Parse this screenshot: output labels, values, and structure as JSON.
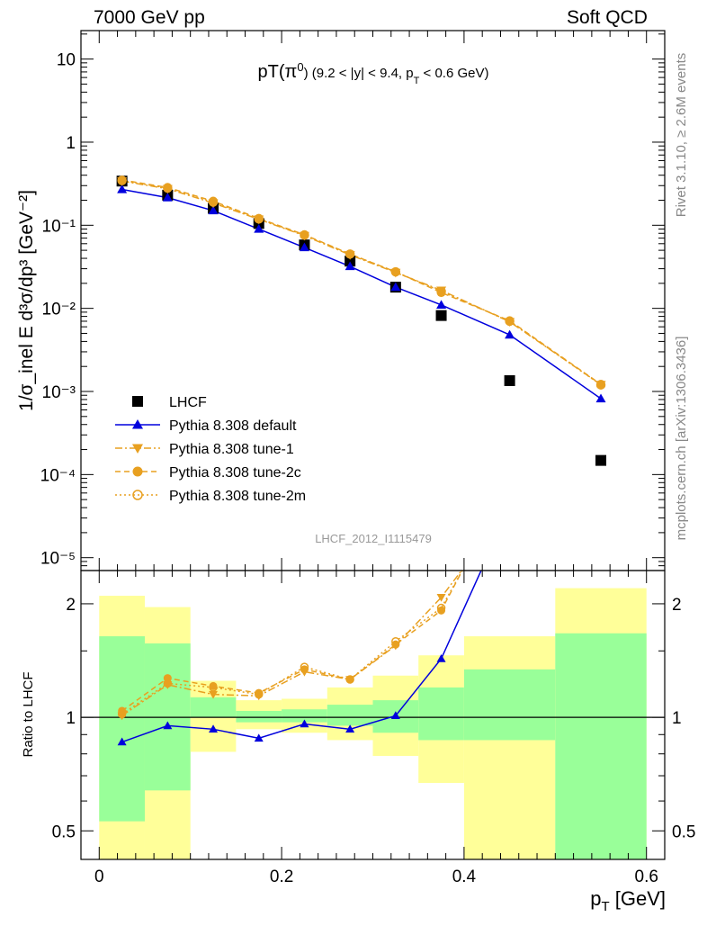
{
  "header": {
    "energy_label": "7000 GeV pp",
    "category_label": "Soft QCD"
  },
  "side_labels": {
    "rivet": "Rivet 3.1.10, ≥ 2.6M events",
    "mcplots": "mcplots.cern.ch [arXiv:1306.3436]"
  },
  "colors": {
    "data": "#000000",
    "default": "#0000dd",
    "tunes": "#e8a020",
    "band_inner": "#99ff99",
    "band_outer": "#ffff99"
  },
  "chart_data": [
    {
      "type": "line",
      "panel": "main",
      "title": {
        "pre": "pT(π",
        "sup": "0",
        "post": ") (9.2 < |y| < 9.4, p",
        "sub": "T",
        "tail": " < 0.6 GeV)"
      },
      "ylabel": "1/σ_inel E d³σ/dp³ [GeV⁻²]",
      "analysis_label": "LHCF_2012_I1115479",
      "yscale": "log",
      "ylim": [
        7e-06,
        22
      ],
      "xlim": [
        -0.02,
        0.62
      ],
      "ytick_labels": [
        "10",
        "1",
        "10⁻¹",
        "10⁻²",
        "10⁻³",
        "10⁻⁴",
        "10⁻⁵"
      ],
      "legend_placement": "lower-left",
      "series": [
        {
          "name": "LHCF",
          "style": "marker-square",
          "x": [
            0.025,
            0.075,
            0.125,
            0.175,
            0.225,
            0.275,
            0.325,
            0.375,
            0.45,
            0.55
          ],
          "y": [
            0.34,
            0.23,
            0.16,
            0.105,
            0.058,
            0.037,
            0.018,
            0.0082,
            0.00135,
            0.000148
          ]
        },
        {
          "name": "Pythia 8.308 default",
          "style": "solid-triangle-up",
          "x": [
            0.025,
            0.075,
            0.125,
            0.175,
            0.225,
            0.275,
            0.325,
            0.375,
            0.45,
            0.55
          ],
          "y": [
            0.27,
            0.215,
            0.15,
            0.09,
            0.054,
            0.032,
            0.018,
            0.011,
            0.0048,
            0.00082
          ]
        },
        {
          "name": "Pythia 8.308 tune-1",
          "style": "dashdot-triangle-down",
          "x": [
            0.025,
            0.075,
            0.125,
            0.175,
            0.225,
            0.275,
            0.325,
            0.375,
            0.45,
            0.55
          ],
          "y": [
            0.34,
            0.275,
            0.185,
            0.118,
            0.075,
            0.044,
            0.027,
            0.0165,
            0.0069,
            0.00121
          ]
        },
        {
          "name": "Pythia 8.308 tune-2c",
          "style": "dashed-circle-filled",
          "x": [
            0.025,
            0.075,
            0.125,
            0.175,
            0.225,
            0.275,
            0.325,
            0.375,
            0.45,
            0.55
          ],
          "y": [
            0.35,
            0.285,
            0.195,
            0.121,
            0.077,
            0.045,
            0.0275,
            0.0155,
            0.0071,
            0.00122
          ]
        },
        {
          "name": "Pythia 8.308 tune-2m",
          "style": "dotted-circle-open",
          "x": [
            0.025,
            0.075,
            0.125,
            0.175,
            0.225,
            0.275,
            0.325,
            0.375,
            0.45,
            0.55
          ],
          "y": [
            0.345,
            0.28,
            0.19,
            0.119,
            0.076,
            0.045,
            0.0275,
            0.016,
            0.007,
            0.0012
          ]
        }
      ]
    },
    {
      "type": "line",
      "panel": "ratio",
      "ylabel": "Ratio to LHCF",
      "xlabel": "p_T [GeV]",
      "xlabel_main": "p",
      "xlabel_sub": "T",
      "xlabel_unit": " [GeV]",
      "yscale": "log",
      "ylim": [
        0.42,
        2.45
      ],
      "xlim": [
        -0.02,
        0.62
      ],
      "xticks": [
        0,
        0.2,
        0.4,
        0.6
      ],
      "xtick_labels": [
        "0",
        "0.2",
        "0.4",
        "0.6"
      ],
      "yticks": [
        0.5,
        1,
        2
      ],
      "ytick_labels": [
        "0.5",
        "1",
        "2"
      ],
      "bands": {
        "edges": [
          0,
          0.05,
          0.1,
          0.15,
          0.2,
          0.25,
          0.3,
          0.35,
          0.4,
          0.5,
          0.6
        ],
        "inner": [
          [
            0.53,
            1.64
          ],
          [
            0.64,
            1.57
          ],
          [
            1.0,
            1.13
          ],
          [
            0.97,
            1.04
          ],
          [
            0.97,
            1.05
          ],
          [
            0.95,
            1.08
          ],
          [
            0.91,
            1.11
          ],
          [
            0.87,
            1.2
          ],
          [
            0.87,
            1.34
          ],
          [
            0.42,
            1.67
          ]
        ],
        "outer": [
          [
            0.42,
            2.1
          ],
          [
            0.42,
            1.96
          ],
          [
            0.81,
            1.25
          ],
          [
            0.93,
            1.11
          ],
          [
            0.91,
            1.12
          ],
          [
            0.87,
            1.2
          ],
          [
            0.79,
            1.29
          ],
          [
            0.67,
            1.46
          ],
          [
            0.42,
            1.64
          ],
          [
            0.42,
            2.2
          ]
        ]
      },
      "series": [
        {
          "name": "Pythia 8.308 default",
          "x": [
            0.025,
            0.075,
            0.125,
            0.175,
            0.225,
            0.275,
            0.325,
            0.375,
            0.45
          ],
          "y": [
            0.86,
            0.95,
            0.93,
            0.88,
            0.96,
            0.93,
            1.01,
            1.43,
            3.6
          ]
        },
        {
          "name": "Pythia 8.308 tune-1",
          "x": [
            0.025,
            0.075,
            0.125,
            0.175,
            0.225,
            0.275,
            0.325,
            0.375,
            0.4
          ],
          "y": [
            1.01,
            1.22,
            1.15,
            1.14,
            1.32,
            1.26,
            1.55,
            2.08,
            2.5
          ]
        },
        {
          "name": "Pythia 8.308 tune-2c",
          "x": [
            0.025,
            0.075,
            0.125,
            0.175,
            0.225,
            0.275,
            0.325,
            0.375,
            0.4
          ],
          "y": [
            1.04,
            1.27,
            1.21,
            1.16,
            1.34,
            1.26,
            1.56,
            1.92,
            2.5
          ]
        },
        {
          "name": "Pythia 8.308 tune-2m",
          "x": [
            0.025,
            0.075,
            0.125,
            0.175,
            0.225,
            0.275,
            0.325,
            0.375,
            0.4
          ],
          "y": [
            1.02,
            1.23,
            1.2,
            1.15,
            1.36,
            1.26,
            1.59,
            1.95,
            2.5
          ]
        }
      ]
    }
  ]
}
